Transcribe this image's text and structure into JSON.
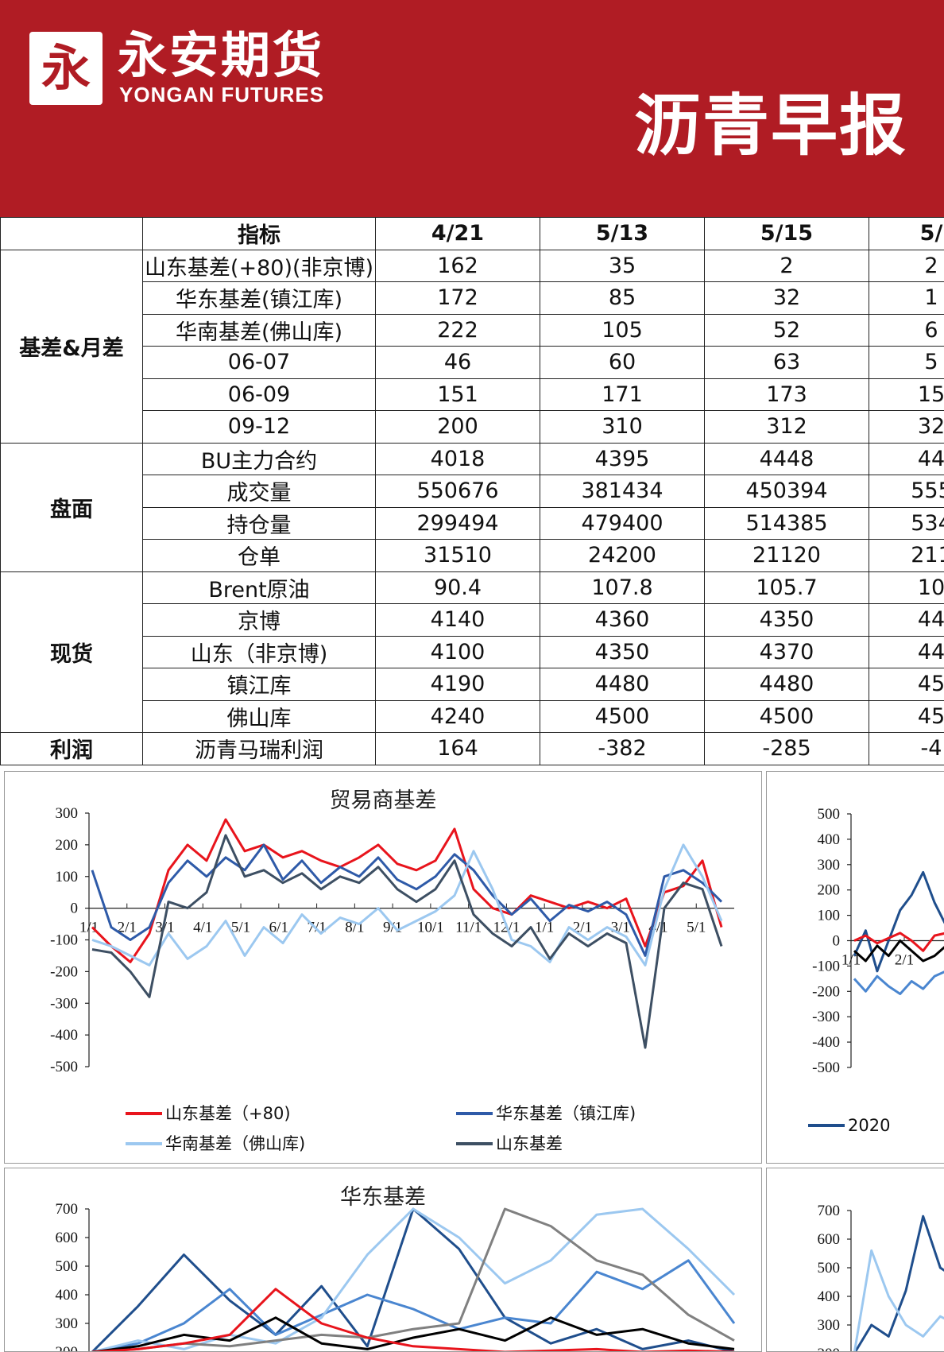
{
  "header": {
    "logo_glyph": "永",
    "company_cn": "永安期货",
    "company_en": "YONGAN FUTURES",
    "report_title": "沥青早报"
  },
  "table": {
    "header": [
      "",
      "指标",
      "4/21",
      "5/13",
      "5/15",
      "5/"
    ],
    "groups": [
      {
        "name": "基差&月差",
        "rows": [
          {
            "label": "山东基差(+80)(非京博)",
            "values": [
              "162",
              "35",
              "2",
              "2"
            ]
          },
          {
            "label": "华东基差(镇江库)",
            "values": [
              "172",
              "85",
              "32",
              "1"
            ]
          },
          {
            "label": "华南基差(佛山库)",
            "values": [
              "222",
              "105",
              "52",
              "6"
            ]
          },
          {
            "label": "06-07",
            "values": [
              "46",
              "60",
              "63",
              "5"
            ]
          },
          {
            "label": "06-09",
            "values": [
              "151",
              "171",
              "173",
              "15"
            ]
          },
          {
            "label": "09-12",
            "values": [
              "200",
              "310",
              "312",
              "32"
            ]
          }
        ]
      },
      {
        "name": "盘面",
        "rows": [
          {
            "label": "BU主力合约",
            "values": [
              "4018",
              "4395",
              "4448",
              "44"
            ]
          },
          {
            "label": "成交量",
            "values": [
              "550676",
              "381434",
              "450394",
              "555"
            ]
          },
          {
            "label": "持仓量",
            "values": [
              "299494",
              "479400",
              "514385",
              "534"
            ]
          },
          {
            "label": "仓单",
            "values": [
              "31510",
              "24200",
              "21120",
              "211"
            ]
          }
        ]
      },
      {
        "name": "现货",
        "rows": [
          {
            "label": "Brent原油",
            "values": [
              "90.4",
              "107.8",
              "105.7",
              "10"
            ]
          },
          {
            "label": "京博",
            "values": [
              "4140",
              "4360",
              "4350",
              "44"
            ]
          },
          {
            "label": "山东（非京博)",
            "values": [
              "4100",
              "4350",
              "4370",
              "44"
            ]
          },
          {
            "label": "镇江库",
            "values": [
              "4190",
              "4480",
              "4480",
              "45"
            ]
          },
          {
            "label": "佛山库",
            "values": [
              "4240",
              "4500",
              "4500",
              "45"
            ]
          }
        ]
      },
      {
        "name": "利润",
        "rows": [
          {
            "label": "沥青马瑞利润",
            "values": [
              "164",
              "-382",
              "-285",
              "-4"
            ]
          }
        ]
      }
    ]
  },
  "chart_data": [
    {
      "type": "line",
      "title": "贸易商基差",
      "ylim": [
        -500,
        300
      ],
      "yticks": [
        300,
        200,
        100,
        0,
        -100,
        -200,
        -300,
        -400,
        -500
      ],
      "x_tick_labels": [
        "1/1",
        "2/1",
        "3/1",
        "4/1",
        "5/1",
        "6/1",
        "7/1",
        "8/1",
        "9/1",
        "10/1",
        "11/1",
        "12/1",
        "1/1",
        "2/1",
        "3/1",
        "4/1",
        "5/1"
      ],
      "series": [
        {
          "name": "山东基差（+80)",
          "color": "#e8141c",
          "values": [
            -60,
            -120,
            -170,
            -80,
            120,
            200,
            150,
            280,
            180,
            200,
            160,
            180,
            150,
            130,
            160,
            200,
            140,
            120,
            150,
            250,
            60,
            0,
            -20,
            40,
            20,
            0,
            20,
            0,
            30,
            -120,
            50,
            70,
            150,
            -60
          ]
        },
        {
          "name": "华东基差（镇江库)",
          "color": "#2e5aa8",
          "values": [
            120,
            -60,
            -100,
            -60,
            80,
            150,
            100,
            160,
            120,
            200,
            90,
            150,
            80,
            130,
            100,
            160,
            90,
            60,
            100,
            170,
            120,
            40,
            -20,
            30,
            -40,
            10,
            -10,
            20,
            -20,
            -150,
            100,
            120,
            80,
            20
          ]
        },
        {
          "name": "华南基差（佛山库)",
          "color": "#9cc8f0",
          "values": [
            -100,
            -120,
            -150,
            -180,
            -80,
            -160,
            -120,
            -40,
            -150,
            -60,
            -110,
            -20,
            -80,
            -30,
            -50,
            0,
            -70,
            -40,
            -10,
            40,
            180,
            60,
            -100,
            -120,
            -170,
            -60,
            -100,
            -60,
            -90,
            -180,
            60,
            200,
            100,
            -40
          ]
        },
        {
          "name": "山东基差",
          "color": "#3d4f63",
          "values": [
            -130,
            -140,
            -200,
            -280,
            20,
            0,
            50,
            230,
            100,
            120,
            80,
            110,
            60,
            100,
            80,
            130,
            60,
            20,
            60,
            150,
            -20,
            -80,
            -120,
            -60,
            -160,
            -80,
            -120,
            -80,
            -110,
            -440,
            0,
            80,
            60,
            -120
          ]
        }
      ]
    },
    {
      "type": "line",
      "title": "",
      "ylim": [
        -500,
        500
      ],
      "yticks": [
        500,
        400,
        300,
        200,
        100,
        0,
        -100,
        -200,
        -300,
        -400,
        -500
      ],
      "x_tick_labels": [
        "1/1",
        "2/1"
      ],
      "series": [
        {
          "name": "2020",
          "color": "#1f4e8c",
          "values": [
            -60,
            40,
            -120,
            0,
            120,
            180,
            270,
            150,
            60,
            0
          ]
        },
        {
          "name": "",
          "color": "#4a86d0",
          "values": [
            -150,
            -200,
            -140,
            -180,
            -210,
            -160,
            -190,
            -140,
            -120,
            -60
          ]
        },
        {
          "name": "",
          "color": "#000000",
          "values": [
            -40,
            -80,
            -20,
            -60,
            0,
            -40,
            -80,
            -60,
            -20,
            20
          ]
        },
        {
          "name": "",
          "color": "#e8141c",
          "values": [
            0,
            20,
            -10,
            10,
            30,
            0,
            -40,
            20,
            30,
            40
          ]
        }
      ]
    },
    {
      "type": "line",
      "title": "华东基差",
      "ylim": [
        200,
        700
      ],
      "yticks": [
        700,
        600,
        500,
        400,
        300,
        200
      ],
      "x_tick_labels": [],
      "series": [
        {
          "name": "",
          "color": "#1f4e8c",
          "values": [
            200,
            360,
            540,
            380,
            260,
            430,
            220,
            700,
            560,
            320,
            230,
            280,
            210,
            240,
            200
          ]
        },
        {
          "name": "",
          "color": "#4a86d0",
          "values": [
            200,
            230,
            300,
            420,
            260,
            330,
            400,
            350,
            280,
            320,
            300,
            480,
            420,
            520,
            300
          ]
        },
        {
          "name": "",
          "color": "#9cc8f0",
          "values": [
            200,
            240,
            210,
            260,
            230,
            320,
            540,
            700,
            600,
            440,
            520,
            680,
            700,
            560,
            400
          ]
        },
        {
          "name": "",
          "color": "#808080",
          "values": [
            200,
            210,
            230,
            220,
            240,
            260,
            250,
            280,
            300,
            700,
            640,
            520,
            470,
            330,
            240
          ]
        },
        {
          "name": "",
          "color": "#000000",
          "values": [
            200,
            220,
            260,
            240,
            320,
            230,
            210,
            250,
            280,
            240,
            320,
            260,
            280,
            230,
            210
          ]
        },
        {
          "name": "",
          "color": "#e8141c",
          "values": [
            200,
            210,
            230,
            260,
            420,
            300,
            250,
            220,
            210,
            200,
            205,
            210,
            200,
            205,
            200
          ]
        }
      ]
    },
    {
      "type": "line",
      "title": "",
      "ylim": [
        200,
        700
      ],
      "yticks": [
        700,
        600,
        500,
        400,
        300,
        200
      ],
      "x_tick_labels": [],
      "series": [
        {
          "name": "",
          "color": "#1f4e8c",
          "values": [
            200,
            300,
            260,
            420,
            680,
            500,
            460
          ]
        },
        {
          "name": "",
          "color": "#9cc8f0",
          "values": [
            200,
            560,
            400,
            300,
            260,
            330,
            300
          ]
        }
      ]
    }
  ]
}
